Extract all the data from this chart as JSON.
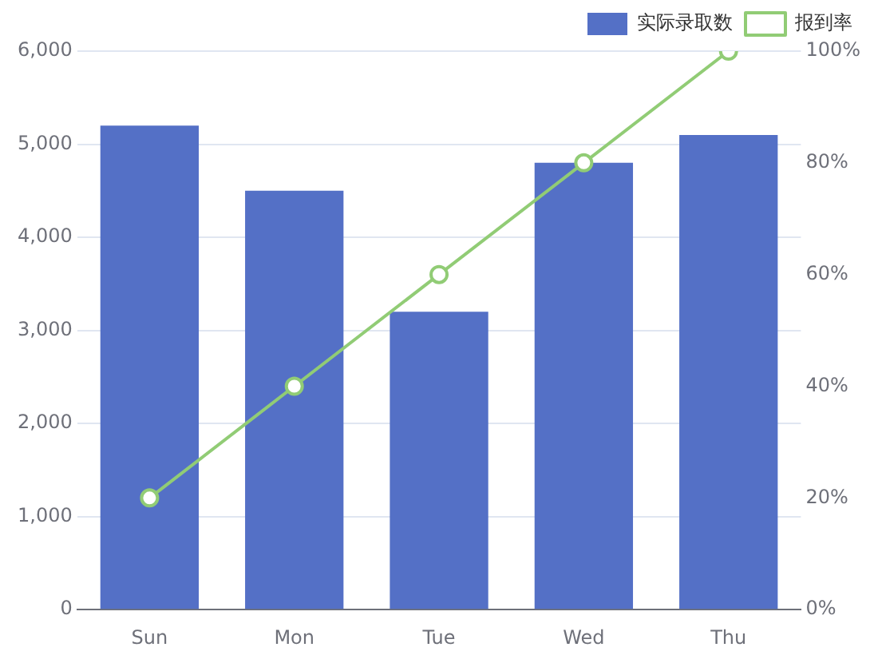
{
  "chart_data": {
    "type": "bar",
    "categories": [
      "Sun",
      "Mon",
      "Tue",
      "Wed",
      "Thu"
    ],
    "series": [
      {
        "name": "实际录取数",
        "color": "#5470c6",
        "values": [
          5200,
          4500,
          3200,
          4800,
          5100
        ]
      },
      {
        "name": "报到率",
        "type": "line",
        "axis": "y2",
        "color": "#91cc75",
        "values": [
          20,
          40,
          60,
          80,
          100
        ]
      }
    ],
    "ylim": [
      0,
      6000
    ],
    "yticks": [
      0,
      {
        "value": 1000,
        "label": "1,000"
      },
      {
        "value": 2000,
        "label": "2,000"
      },
      {
        "value": 3000,
        "label": "3,000"
      },
      {
        "value": 4000,
        "label": "4,000"
      },
      {
        "value": 5000,
        "label": "5,000"
      },
      {
        "value": 6000,
        "label": "6,000"
      }
    ],
    "y2lim": [
      0,
      100
    ],
    "y2ticks": [
      {
        "value": 0,
        "label": "0%"
      },
      {
        "value": 20,
        "label": "20%"
      },
      {
        "value": 40,
        "label": "40%"
      },
      {
        "value": 60,
        "label": "60%"
      },
      {
        "value": 80,
        "label": "80%"
      },
      {
        "value": 100,
        "label": "100%"
      }
    ],
    "grid": "y",
    "legend": "top right",
    "marker": "circle"
  }
}
